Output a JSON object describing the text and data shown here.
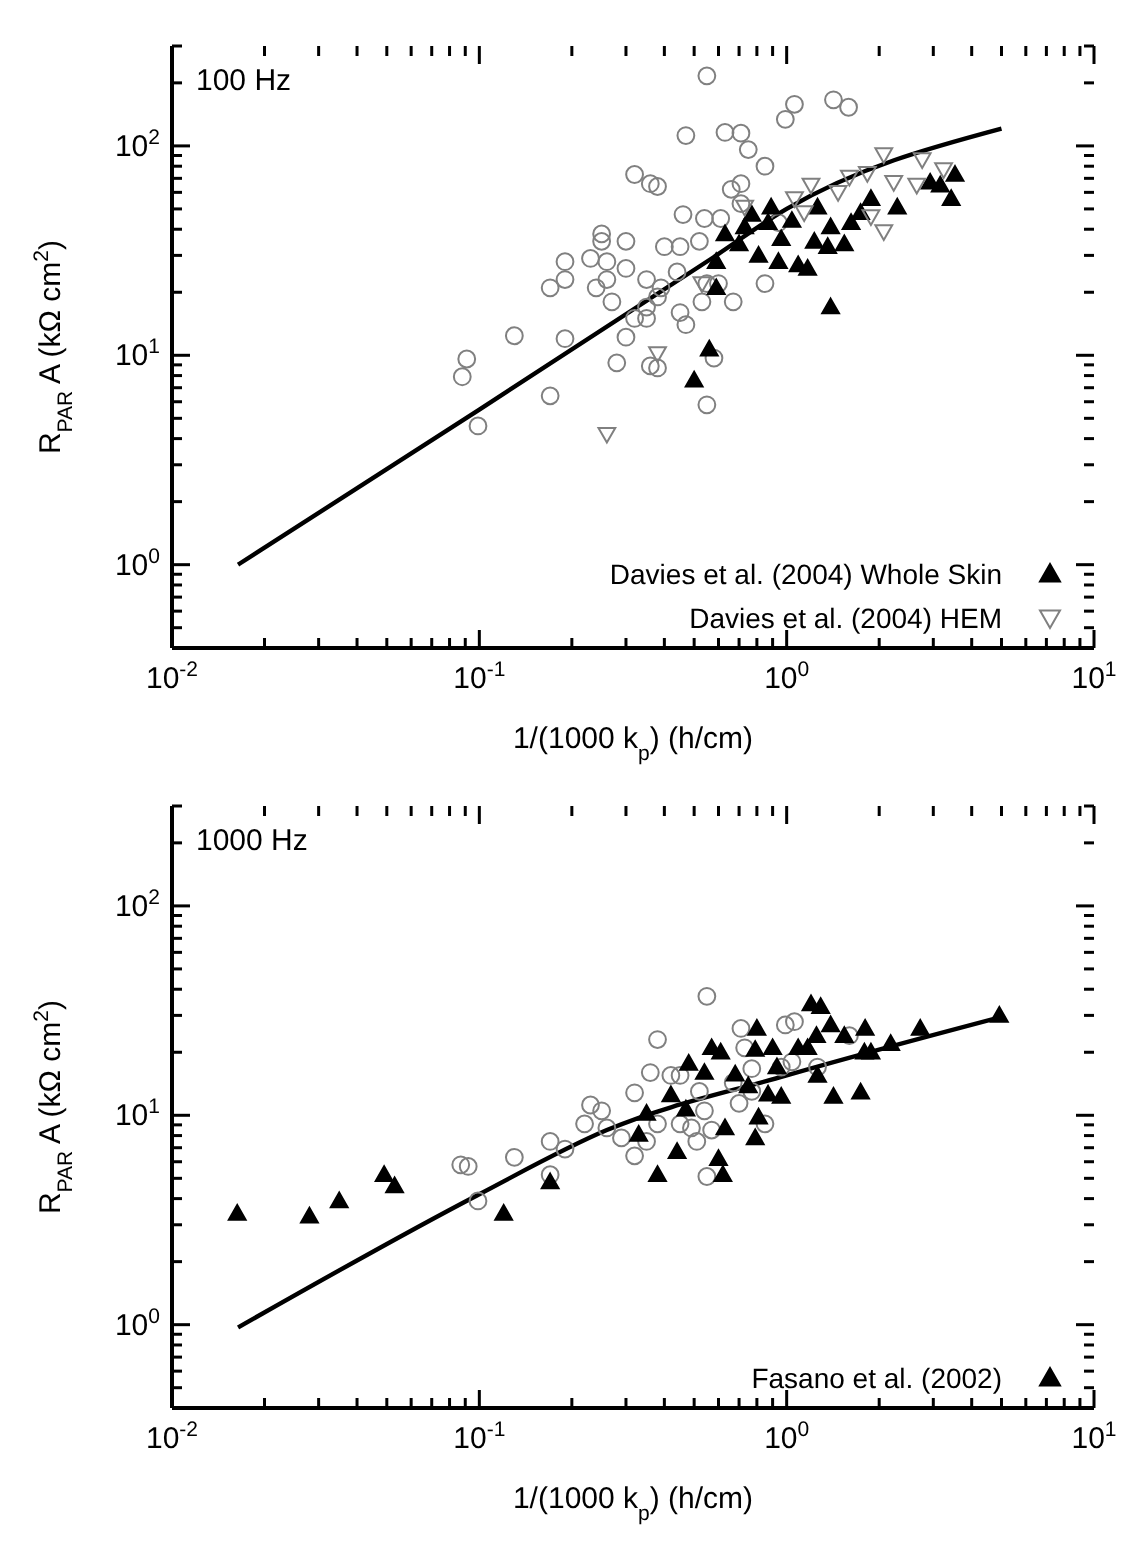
{
  "chart_data": [
    {
      "type": "scatter",
      "xlabel": "1/(1000 k$_{p}$) (h/cm)",
      "ylabel": "R$_{PAR}$ A (kΩ cm$^{2}$)",
      "annotations": [
        "100 Hz"
      ],
      "log": "xy",
      "grid": false,
      "legend": "bottom right",
      "xlim": [
        0.01,
        10
      ],
      "ylim": [
        0.4,
        300
      ],
      "xticks": [
        {
          "value": 0.01,
          "label": "10$^{-2}$"
        },
        {
          "value": 0.02,
          "label": null
        },
        {
          "value": 0.03,
          "label": null
        },
        {
          "value": 0.04,
          "label": null
        },
        {
          "value": 0.05,
          "label": null
        },
        {
          "value": 0.06,
          "label": null
        },
        {
          "value": 0.07,
          "label": null
        },
        {
          "value": 0.08,
          "label": null
        },
        {
          "value": 0.09,
          "label": null
        },
        {
          "value": 0.1,
          "label": "10$^{-1}$"
        },
        {
          "value": 0.2,
          "label": null
        },
        {
          "value": 0.3,
          "label": null
        },
        {
          "value": 0.4,
          "label": null
        },
        {
          "value": 0.5,
          "label": null
        },
        {
          "value": 0.6,
          "label": null
        },
        {
          "value": 0.7,
          "label": null
        },
        {
          "value": 0.8,
          "label": null
        },
        {
          "value": 0.9,
          "label": null
        },
        {
          "value": 1,
          "label": "10$^{0}$"
        },
        {
          "value": 2,
          "label": null
        },
        {
          "value": 3,
          "label": null
        },
        {
          "value": 4,
          "label": null
        },
        {
          "value": 5,
          "label": null
        },
        {
          "value": 6,
          "label": null
        },
        {
          "value": 7,
          "label": null
        },
        {
          "value": 8,
          "label": null
        },
        {
          "value": 9,
          "label": null
        },
        {
          "value": 10,
          "label": "10$^{1}$"
        }
      ],
      "yticks": [
        {
          "value": 0.4,
          "label": null
        },
        {
          "value": 0.5,
          "label": null
        },
        {
          "value": 0.6,
          "label": null
        },
        {
          "value": 0.7,
          "label": null
        },
        {
          "value": 0.8,
          "label": null
        },
        {
          "value": 0.9,
          "label": null
        },
        {
          "value": 1,
          "label": "10$^{0}$"
        },
        {
          "value": 2,
          "label": null
        },
        {
          "value": 3,
          "label": null
        },
        {
          "value": 4,
          "label": null
        },
        {
          "value": 5,
          "label": null
        },
        {
          "value": 6,
          "label": null
        },
        {
          "value": 7,
          "label": null
        },
        {
          "value": 8,
          "label": null
        },
        {
          "value": 9,
          "label": null
        },
        {
          "value": 10,
          "label": "10$^{1}$"
        },
        {
          "value": 20,
          "label": null
        },
        {
          "value": 30,
          "label": null
        },
        {
          "value": 40,
          "label": null
        },
        {
          "value": 50,
          "label": null
        },
        {
          "value": 60,
          "label": null
        },
        {
          "value": 70,
          "label": null
        },
        {
          "value": 80,
          "label": null
        },
        {
          "value": 90,
          "label": null
        },
        {
          "value": 100,
          "label": "10$^{2}$"
        },
        {
          "value": 200,
          "label": null
        },
        {
          "value": 300,
          "label": null
        }
      ],
      "series": [
        {
          "type": "scatter",
          "color": "#808080",
          "marker": "circle",
          "x": [
            0.55,
            0.99,
            1.06,
            1.42,
            1.59,
            0.47,
            0.63,
            0.71,
            0.75,
            0.85,
            0.32,
            0.36,
            0.38,
            0.66,
            0.71,
            0.46,
            0.54,
            0.25,
            0.3,
            0.25,
            0.23,
            0.19,
            0.26,
            0.17,
            0.19,
            0.24,
            0.26,
            0.3,
            0.35,
            0.4,
            0.45,
            0.52,
            0.44,
            0.39,
            0.27,
            0.32,
            0.35,
            0.38,
            0.45,
            0.47,
            0.53,
            0.55,
            0.6,
            0.67,
            0.61,
            0.71,
            0.85,
            0.13,
            0.19,
            0.3,
            0.35,
            0.091,
            0.088,
            0.099,
            0.17,
            0.28,
            0.36,
            0.38,
            0.58,
            0.55,
            0.94
          ],
          "values": [
            216,
            134,
            158,
            166,
            153,
            112,
            116,
            115,
            96,
            80,
            73,
            66,
            64,
            62,
            66,
            47,
            45,
            38,
            35,
            35,
            29,
            28,
            28,
            21,
            23,
            21,
            23,
            26,
            23,
            33,
            33,
            35,
            25,
            21,
            18,
            15,
            17,
            19,
            16,
            14,
            18,
            22,
            22,
            18,
            45,
            53,
            22,
            12.4,
            12,
            12.2,
            15,
            9.6,
            7.9,
            4.6,
            6.4,
            9.2,
            8.9,
            8.7,
            9.7,
            5.8,
            43
          ]
        },
        {
          "type": "scatter",
          "name": "Davies et al. (2004) Whole Skin",
          "color": "#000000",
          "marker": "triangle",
          "x": [
            0.59,
            0.59,
            0.63,
            0.56,
            0.5,
            1.39,
            0.7,
            0.77,
            0.81,
            0.87,
            0.94,
            0.96,
            1.04,
            1.09,
            1.17,
            1.23,
            1.36,
            1.39,
            1.54,
            1.62,
            1.74,
            1.88,
            2.29,
            2.93,
            3.16,
            3.43,
            3.53,
            0.73,
            0.89,
            1.26
          ],
          "values": [
            28,
            21,
            38,
            10.7,
            7.6,
            17,
            34,
            47,
            30,
            43,
            28,
            36,
            44,
            27,
            26,
            35,
            33,
            41,
            34,
            43,
            48,
            56,
            51,
            67,
            65,
            56,
            73,
            41,
            51,
            51
          ]
        },
        {
          "type": "scatter",
          "name": "Davies et al. (2004) HEM",
          "color": "#808080",
          "marker": "triangle-down",
          "x": [
            0.26,
            0.38,
            2.07,
            2.76,
            2.65,
            3.24,
            1.6,
            1.83,
            1.2,
            1.06,
            2.23,
            2.07,
            0.73,
            1.14,
            1.88,
            1.47,
            0.53
          ],
          "values": [
            4.2,
            10.2,
            91,
            86,
            65,
            77,
            71,
            74,
            65,
            56,
            67,
            39,
            51,
            48,
            46,
            60,
            22
          ]
        },
        {
          "type": "line",
          "color": "#000000",
          "marker": "none",
          "x": [
            0.0164,
            0.1,
            0.57,
            1,
            5
          ],
          "values": [
            1.0,
            5.5,
            29,
            50,
            121
          ]
        }
      ]
    },
    {
      "type": "scatter",
      "xlabel": "1/(1000 k$_{p}$) (h/cm)",
      "ylabel": "R$_{PAR}$ A (kΩ cm$^{2}$)",
      "annotations": [
        "1000 Hz"
      ],
      "log": "xy",
      "grid": false,
      "legend": "bottom right",
      "xlim": [
        0.01,
        10
      ],
      "ylim": [
        0.4,
        300
      ],
      "xticks": [
        {
          "value": 0.01,
          "label": "10$^{-2}$"
        },
        {
          "value": 0.02,
          "label": null
        },
        {
          "value": 0.03,
          "label": null
        },
        {
          "value": 0.04,
          "label": null
        },
        {
          "value": 0.05,
          "label": null
        },
        {
          "value": 0.06,
          "label": null
        },
        {
          "value": 0.07,
          "label": null
        },
        {
          "value": 0.08,
          "label": null
        },
        {
          "value": 0.09,
          "label": null
        },
        {
          "value": 0.1,
          "label": "10$^{-1}$"
        },
        {
          "value": 0.2,
          "label": null
        },
        {
          "value": 0.3,
          "label": null
        },
        {
          "value": 0.4,
          "label": null
        },
        {
          "value": 0.5,
          "label": null
        },
        {
          "value": 0.6,
          "label": null
        },
        {
          "value": 0.7,
          "label": null
        },
        {
          "value": 0.8,
          "label": null
        },
        {
          "value": 0.9,
          "label": null
        },
        {
          "value": 1,
          "label": "10$^{0}$"
        },
        {
          "value": 2,
          "label": null
        },
        {
          "value": 3,
          "label": null
        },
        {
          "value": 4,
          "label": null
        },
        {
          "value": 5,
          "label": null
        },
        {
          "value": 6,
          "label": null
        },
        {
          "value": 7,
          "label": null
        },
        {
          "value": 8,
          "label": null
        },
        {
          "value": 9,
          "label": null
        },
        {
          "value": 10,
          "label": "10$^{1}$"
        }
      ],
      "yticks": [
        {
          "value": 0.4,
          "label": null
        },
        {
          "value": 0.5,
          "label": null
        },
        {
          "value": 0.6,
          "label": null
        },
        {
          "value": 0.7,
          "label": null
        },
        {
          "value": 0.8,
          "label": null
        },
        {
          "value": 0.9,
          "label": null
        },
        {
          "value": 1,
          "label": "10$^{0}$"
        },
        {
          "value": 2,
          "label": null
        },
        {
          "value": 3,
          "label": null
        },
        {
          "value": 4,
          "label": null
        },
        {
          "value": 5,
          "label": null
        },
        {
          "value": 6,
          "label": null
        },
        {
          "value": 7,
          "label": null
        },
        {
          "value": 8,
          "label": null
        },
        {
          "value": 9,
          "label": null
        },
        {
          "value": 10,
          "label": "10$^{1}$"
        },
        {
          "value": 20,
          "label": null
        },
        {
          "value": 30,
          "label": null
        },
        {
          "value": 40,
          "label": null
        },
        {
          "value": 50,
          "label": null
        },
        {
          "value": 60,
          "label": null
        },
        {
          "value": 70,
          "label": null
        },
        {
          "value": 80,
          "label": null
        },
        {
          "value": 90,
          "label": null
        },
        {
          "value": 100,
          "label": "10$^{2}$"
        },
        {
          "value": 200,
          "label": null
        },
        {
          "value": 300,
          "label": null
        }
      ],
      "series": [
        {
          "type": "scatter",
          "color": "#808080",
          "marker": "circle",
          "x": [
            0.55,
            0.38,
            0.36,
            0.71,
            0.99,
            1.06,
            1.6,
            1.26,
            0.73,
            0.23,
            0.25,
            0.22,
            0.26,
            0.29,
            0.32,
            0.32,
            0.35,
            0.38,
            0.42,
            0.45,
            0.49,
            0.52,
            0.54,
            0.57,
            0.51,
            0.55,
            0.59,
            0.7,
            0.77,
            0.85,
            0.77,
            0.96,
            1.04,
            0.087,
            0.092,
            0.099,
            0.13,
            0.17,
            0.19,
            0.17,
            0.45,
            0.67
          ],
          "values": [
            37,
            23,
            16,
            26,
            27,
            28,
            24,
            17,
            21,
            11.2,
            10.5,
            9.1,
            8.7,
            7.8,
            6.4,
            12.8,
            7.5,
            9.1,
            15.5,
            9.1,
            8.7,
            13,
            10.5,
            8.5,
            7.5,
            5.1,
            null,
            11.4,
            16.7,
            9.1,
            13,
            17,
            18,
            5.8,
            5.7,
            3.9,
            6.3,
            7.5,
            6.9,
            5.2,
            15.5,
            14.3
          ]
        },
        {
          "type": "scatter",
          "name": "Fasano et al. (2002)",
          "color": "#000000",
          "marker": "triangle",
          "x": [
            0.0163,
            0.028,
            0.035,
            0.049,
            0.053,
            0.12,
            0.17,
            0.38,
            0.44,
            0.33,
            0.35,
            0.42,
            0.47,
            0.48,
            0.54,
            0.57,
            0.61,
            0.63,
            0.6,
            0.62,
            0.68,
            0.75,
            0.79,
            0.8,
            0.79,
            0.81,
            0.87,
            0.9,
            0.93,
            0.96,
            1.09,
            1.2,
            1.29,
            1.25,
            1.17,
            1.26,
            1.39,
            1.42,
            1.54,
            1.74,
            1.8,
            1.79,
            1.88,
            2.18,
            2.72,
            4.92
          ],
          "values": [
            3.4,
            3.3,
            3.9,
            5.2,
            4.6,
            3.4,
            4.8,
            5.2,
            6.7,
            8.1,
            10.2,
            12.5,
            10.7,
            17.7,
            16,
            21,
            20,
            8.7,
            6.2,
            5.2,
            15.7,
            13.8,
            20.6,
            26,
            7.8,
            9.8,
            12.6,
            21,
            17,
            12.3,
            21,
            34,
            33,
            24,
            21,
            15.5,
            27,
            12.3,
            24,
            12.9,
            26,
            20,
            20,
            22,
            26,
            30
          ]
        },
        {
          "type": "line",
          "color": "#000000",
          "marker": "none",
          "x": [
            0.0164,
            0.1,
            0.26,
            1,
            5
          ],
          "values": [
            0.97,
            4.2,
            8.5,
            15.5,
            29.5
          ]
        }
      ]
    }
  ]
}
